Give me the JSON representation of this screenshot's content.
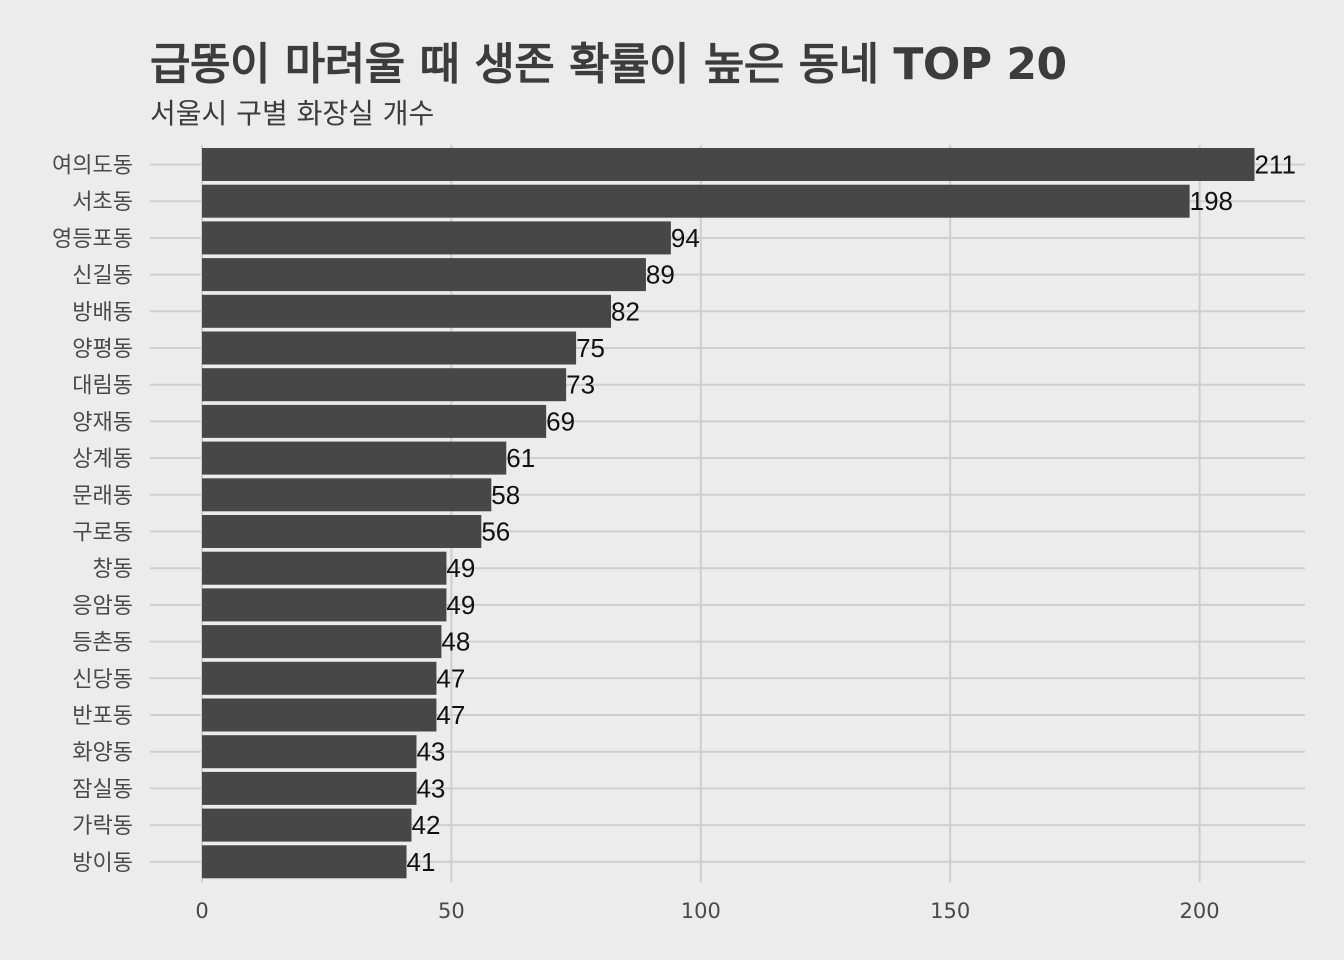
{
  "title": "급똥이 마려울 때 생존 확률이 높은 동네 TOP 20",
  "subtitle": "서울시 구별 화장실 개수",
  "colors": {
    "background": "#ececec",
    "bar": "#474747",
    "grid": "#cfcfcf",
    "text": "#3c3c3c"
  },
  "chart_data": {
    "type": "bar",
    "orientation": "horizontal",
    "categories": [
      "여의도동",
      "서초동",
      "영등포동",
      "신길동",
      "방배동",
      "양평동",
      "대림동",
      "양재동",
      "상계동",
      "문래동",
      "구로동",
      "창동",
      "응암동",
      "등촌동",
      "신당동",
      "반포동",
      "화양동",
      "잠실동",
      "가락동",
      "방이동"
    ],
    "values": [
      211,
      198,
      94,
      89,
      82,
      75,
      73,
      69,
      61,
      58,
      56,
      49,
      49,
      48,
      47,
      47,
      43,
      43,
      42,
      41
    ],
    "xticks": [
      0,
      50,
      100,
      150,
      200
    ],
    "xlim": [
      0,
      221
    ],
    "xlabel": "",
    "ylabel": "",
    "grid": true,
    "value_labels": true
  }
}
